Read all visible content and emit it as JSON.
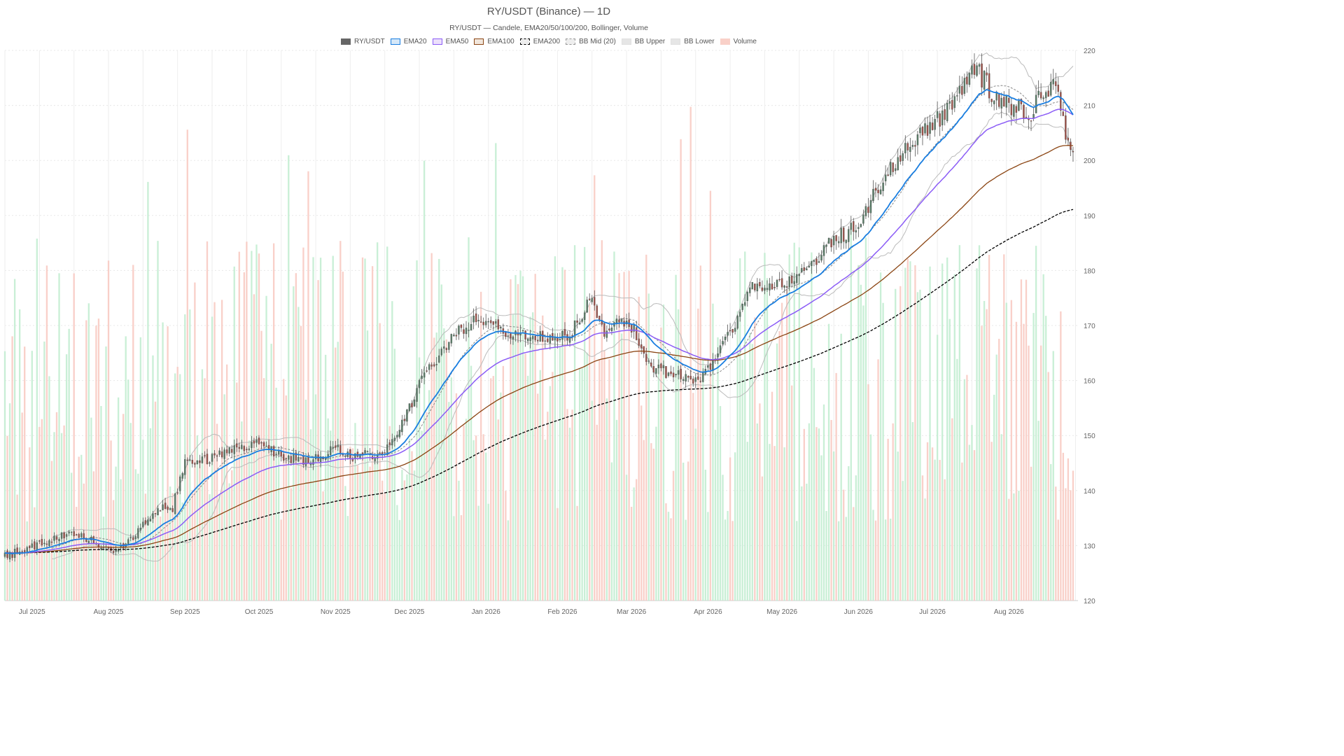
{
  "title": "RY/USDT (Binance) — 1D",
  "subtitle": "RY/USDT — Candele, EMA20/50/100/200, Bollinger, Volume",
  "legend": [
    {
      "label": "RY/USDT",
      "fill": "#666666",
      "stroke": "#666666",
      "dash": false
    },
    {
      "label": "EMA20",
      "fill": "#d6e8f8",
      "stroke": "#1a7ee0",
      "dash": false
    },
    {
      "label": "EMA50",
      "fill": "#ece0fb",
      "stroke": "#8b5cf6",
      "dash": false
    },
    {
      "label": "EMA100",
      "fill": "#f1e6dc",
      "stroke": "#8b4513",
      "dash": false
    },
    {
      "label": "EMA200",
      "fill": "#eeeeee",
      "stroke": "#000000",
      "dash": true
    },
    {
      "label": "BB Mid (20)",
      "fill": "#eeeeee",
      "stroke": "#999999",
      "dash": true
    },
    {
      "label": "BB Upper",
      "fill": "#e6e6e6",
      "stroke": "#e0e0e0",
      "dash": false
    },
    {
      "label": "BB Lower",
      "fill": "#e6e6e6",
      "stroke": "#e0e0e0",
      "dash": false
    },
    {
      "label": "Volume",
      "fill": "#f9d0c8",
      "stroke": "#f9d0c8",
      "dash": false
    }
  ],
  "colors": {
    "up": "#5a7d68",
    "down": "#a0524a",
    "wick": "#555555",
    "ema20": "#1a7ee0",
    "ema50": "#8b5cf6",
    "ema100": "#8b4513",
    "ema200": "#000000",
    "bb_mid": "#888888",
    "bb_band": "#bbbbbb",
    "vol_up": "#bfeccf",
    "vol_down": "#f8c8bf",
    "grid": "#e8e8e8"
  },
  "chart_data": {
    "type": "candlestick",
    "x_start": "2025-06-20",
    "x_end": "2026-08-29",
    "ylim": [
      120,
      220
    ],
    "yticks": [
      120,
      130,
      140,
      150,
      160,
      170,
      180,
      190,
      200,
      210,
      220
    ],
    "y_axis_side": "right",
    "grid": true,
    "legend_position": "top",
    "xticks": [
      {
        "date": "2025-07-01",
        "label": "Jul 2025"
      },
      {
        "date": "2025-08-01",
        "label": "Aug 2025"
      },
      {
        "date": "2025-09-01",
        "label": "Sep 2025"
      },
      {
        "date": "2025-10-01",
        "label": "Oct 2025"
      },
      {
        "date": "2025-11-01",
        "label": "Nov 2025"
      },
      {
        "date": "2025-12-01",
        "label": "Dec 2025"
      },
      {
        "date": "2026-01-01",
        "label": "Jan 2026"
      },
      {
        "date": "2026-02-01",
        "label": "Feb 2026"
      },
      {
        "date": "2026-03-01",
        "label": "Mar 2026"
      },
      {
        "date": "2026-04-01",
        "label": "Apr 2026"
      },
      {
        "date": "2026-05-01",
        "label": "May 2026"
      },
      {
        "date": "2026-06-01",
        "label": "Jun 2026"
      },
      {
        "date": "2026-07-01",
        "label": "Jul 2026"
      },
      {
        "date": "2026-08-01",
        "label": "Aug 2026"
      }
    ],
    "close_anchors": [
      [
        "2025-06-20",
        128.0
      ],
      [
        "2025-07-05",
        130.5
      ],
      [
        "2025-07-15",
        132.0
      ],
      [
        "2025-07-25",
        131.0
      ],
      [
        "2025-08-02",
        129.0
      ],
      [
        "2025-08-10",
        131.0
      ],
      [
        "2025-08-20",
        136.5
      ],
      [
        "2025-08-27",
        137.0
      ],
      [
        "2025-09-01",
        145.0
      ],
      [
        "2025-09-10",
        145.5
      ],
      [
        "2025-09-20",
        147.5
      ],
      [
        "2025-09-28",
        148.5
      ],
      [
        "2025-10-10",
        146.5
      ],
      [
        "2025-10-20",
        145.0
      ],
      [
        "2025-11-01",
        147.5
      ],
      [
        "2025-11-10",
        146.0
      ],
      [
        "2025-11-20",
        147.0
      ],
      [
        "2025-11-28",
        152.0
      ],
      [
        "2025-12-08",
        162.0
      ],
      [
        "2025-12-20",
        168.5
      ],
      [
        "2025-12-28",
        171.5
      ],
      [
        "2026-01-08",
        169.0
      ],
      [
        "2026-01-20",
        168.0
      ],
      [
        "2026-01-30",
        167.0
      ],
      [
        "2026-02-08",
        170.5
      ],
      [
        "2026-02-12",
        175.0
      ],
      [
        "2026-02-18",
        169.0
      ],
      [
        "2026-02-28",
        171.0
      ],
      [
        "2026-03-08",
        163.0
      ],
      [
        "2026-03-18",
        161.0
      ],
      [
        "2026-03-28",
        160.0
      ],
      [
        "2026-04-03",
        163.5
      ],
      [
        "2026-04-10",
        168.5
      ],
      [
        "2026-04-18",
        177.0
      ],
      [
        "2026-04-25",
        176.0
      ],
      [
        "2026-05-08",
        179.0
      ],
      [
        "2026-05-20",
        185.0
      ],
      [
        "2026-06-01",
        188.0
      ],
      [
        "2026-06-10",
        196.0
      ],
      [
        "2026-06-20",
        202.0
      ],
      [
        "2026-06-30",
        206.0
      ],
      [
        "2026-07-10",
        210.0
      ],
      [
        "2026-07-18",
        217.0
      ],
      [
        "2026-07-28",
        210.5
      ],
      [
        "2026-08-10",
        209.0
      ],
      [
        "2026-08-20",
        215.0
      ],
      [
        "2026-08-24",
        205.0
      ],
      [
        "2026-08-27",
        203.0
      ]
    ],
    "volume_ylim": [
      0,
      100000
    ],
    "volume_note": "volume bars per day, scaled on a secondary axis"
  }
}
